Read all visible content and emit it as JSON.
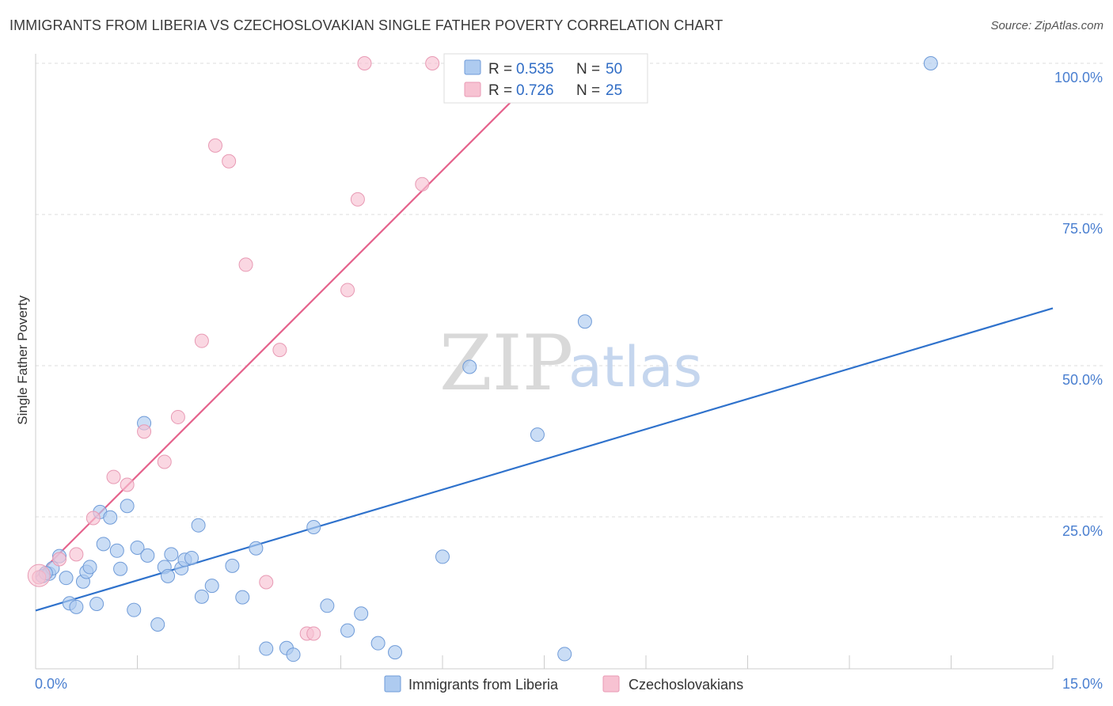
{
  "header": {
    "title": "IMMIGRANTS FROM LIBERIA VS CZECHOSLOVAKIAN SINGLE FATHER POVERTY CORRELATION CHART",
    "source": "Source: ZipAtlas.com"
  },
  "watermark": {
    "zip": "ZIP",
    "atlas": "atlas"
  },
  "colors": {
    "blue_fill": "#aecbf0",
    "blue_stroke": "#6f9bd8",
    "blue_line": "#2f72cc",
    "pink_fill": "#f7c2d2",
    "pink_stroke": "#e89ab4",
    "pink_line": "#e5628c",
    "grid": "#dddddd",
    "axis_text": "#4a7fd0"
  },
  "legend_stats": [
    {
      "r_label": "R =",
      "r_value": "0.535",
      "n_label": "N =",
      "n_value": "50"
    },
    {
      "r_label": "R =",
      "r_value": "0.726",
      "n_label": "N =",
      "n_value": "25"
    }
  ],
  "chart_data": {
    "type": "scatter",
    "title": "IMMIGRANTS FROM LIBERIA VS CZECHOSLOVAKIAN SINGLE FATHER POVERTY CORRELATION CHART",
    "xlabel": "",
    "ylabel": "Single Father Poverty",
    "xlim": [
      0,
      15
    ],
    "ylim": [
      0,
      100
    ],
    "x_tick_labels": [
      "0.0%",
      "15.0%"
    ],
    "y_tick_labels": [
      "25.0%",
      "50.0%",
      "75.0%",
      "100.0%"
    ],
    "y_ticks": [
      25,
      50,
      75,
      100
    ],
    "grid": true,
    "legend_position": "bottom",
    "series": [
      {
        "name": "Immigrants from Liberia",
        "r": 0.535,
        "n": 50,
        "trend": {
          "x": [
            0,
            15
          ],
          "y": [
            9.5,
            59.5
          ]
        },
        "points": [
          [
            0.1,
            15.2
          ],
          [
            0.2,
            15.6
          ],
          [
            0.25,
            16.5
          ],
          [
            0.35,
            18.5
          ],
          [
            0.45,
            14.9
          ],
          [
            0.5,
            10.7
          ],
          [
            0.6,
            10.1
          ],
          [
            0.7,
            14.3
          ],
          [
            0.75,
            15.9
          ],
          [
            0.8,
            16.7
          ],
          [
            0.9,
            10.6
          ],
          [
            0.95,
            25.8
          ],
          [
            1.0,
            20.5
          ],
          [
            1.1,
            24.9
          ],
          [
            1.2,
            19.4
          ],
          [
            1.25,
            16.4
          ],
          [
            1.35,
            26.8
          ],
          [
            1.45,
            9.6
          ],
          [
            1.5,
            19.9
          ],
          [
            1.6,
            40.5
          ],
          [
            1.65,
            18.6
          ],
          [
            1.8,
            7.2
          ],
          [
            1.9,
            16.7
          ],
          [
            1.95,
            15.2
          ],
          [
            2.0,
            18.8
          ],
          [
            2.15,
            16.5
          ],
          [
            2.2,
            17.9
          ],
          [
            2.3,
            18.2
          ],
          [
            2.4,
            23.6
          ],
          [
            2.45,
            11.8
          ],
          [
            2.6,
            13.6
          ],
          [
            2.9,
            16.9
          ],
          [
            3.05,
            11.7
          ],
          [
            3.25,
            19.8
          ],
          [
            3.4,
            3.2
          ],
          [
            3.7,
            3.3
          ],
          [
            3.8,
            2.2
          ],
          [
            4.1,
            23.3
          ],
          [
            4.3,
            10.3
          ],
          [
            4.6,
            6.2
          ],
          [
            4.8,
            9.0
          ],
          [
            5.05,
            4.1
          ],
          [
            5.3,
            2.6
          ],
          [
            6.0,
            18.4
          ],
          [
            6.4,
            49.8
          ],
          [
            7.4,
            38.6
          ],
          [
            7.8,
            2.3
          ],
          [
            8.1,
            57.3
          ],
          [
            13.2,
            100.0
          ],
          [
            0.15,
            15.7
          ]
        ]
      },
      {
        "name": "Czechoslovakians",
        "r": 0.726,
        "n": 25,
        "trend": {
          "x": [
            0,
            7.4
          ],
          "y": [
            15.0,
            98.0
          ]
        },
        "points": [
          [
            0.05,
            15.0
          ],
          [
            0.35,
            18.0
          ],
          [
            0.6,
            18.8
          ],
          [
            0.85,
            24.8
          ],
          [
            1.15,
            31.6
          ],
          [
            1.35,
            30.3
          ],
          [
            1.6,
            39.1
          ],
          [
            1.9,
            34.1
          ],
          [
            2.1,
            41.5
          ],
          [
            2.45,
            54.1
          ],
          [
            2.65,
            86.4
          ],
          [
            2.85,
            83.8
          ],
          [
            3.1,
            66.7
          ],
          [
            3.4,
            14.2
          ],
          [
            3.6,
            52.6
          ],
          [
            4.0,
            5.7
          ],
          [
            4.1,
            5.7
          ],
          [
            4.6,
            62.5
          ],
          [
            4.75,
            77.5
          ],
          [
            4.85,
            100.0
          ],
          [
            5.7,
            80.0
          ],
          [
            5.85,
            100.0
          ],
          [
            6.15,
            100.0
          ],
          [
            6.35,
            100.0
          ],
          [
            7.85,
            100.0
          ]
        ]
      }
    ]
  },
  "bottom_legend": [
    {
      "label": "Immigrants from Liberia"
    },
    {
      "label": "Czechoslovakians"
    }
  ]
}
